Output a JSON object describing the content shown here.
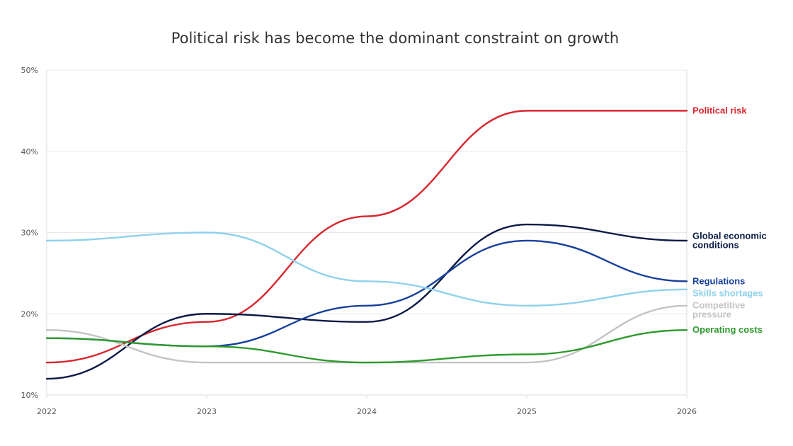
{
  "chart_data": {
    "type": "line",
    "title": "Political risk has become the dominant constraint on growth",
    "xlabel": "",
    "ylabel": "",
    "x": [
      2022,
      2023,
      2024,
      2025,
      2026
    ],
    "x_tick_labels": [
      "2022",
      "2023",
      "2024",
      "2025",
      "2026"
    ],
    "ylim": [
      10,
      50
    ],
    "y_ticks": [
      10,
      20,
      30,
      40,
      50
    ],
    "y_tick_labels": [
      "10%",
      "20%",
      "30%",
      "40%",
      "50%"
    ],
    "grid": true,
    "legend": "direct labels at right end of lines",
    "series": [
      {
        "name": "Political risk",
        "label_lines": [
          "Political risk"
        ],
        "color": "#d7262d",
        "values": [
          14,
          19,
          32,
          45,
          45
        ]
      },
      {
        "name": "Global economic conditions",
        "label_lines": [
          "Global economic",
          "conditions"
        ],
        "color": "#0b1a45",
        "values": [
          12,
          20,
          19,
          31,
          29
        ]
      },
      {
        "name": "Regulations",
        "label_lines": [
          "Regulations"
        ],
        "color": "#17409b",
        "values": [
          17,
          16,
          21,
          29,
          24
        ]
      },
      {
        "name": "Skills shortages",
        "label_lines": [
          "Skills shortages"
        ],
        "color": "#8fd1ec",
        "values": [
          29,
          30,
          24,
          21,
          23
        ]
      },
      {
        "name": "Competitive pressure",
        "label_lines": [
          "Competitive",
          "pressure"
        ],
        "color": "#c4c4c4",
        "values": [
          18,
          14,
          14,
          14,
          21
        ]
      },
      {
        "name": "Operating costs",
        "label_lines": [
          "Operating costs"
        ],
        "color": "#2e9a2e",
        "values": [
          17,
          16,
          14,
          15,
          18
        ]
      }
    ]
  }
}
